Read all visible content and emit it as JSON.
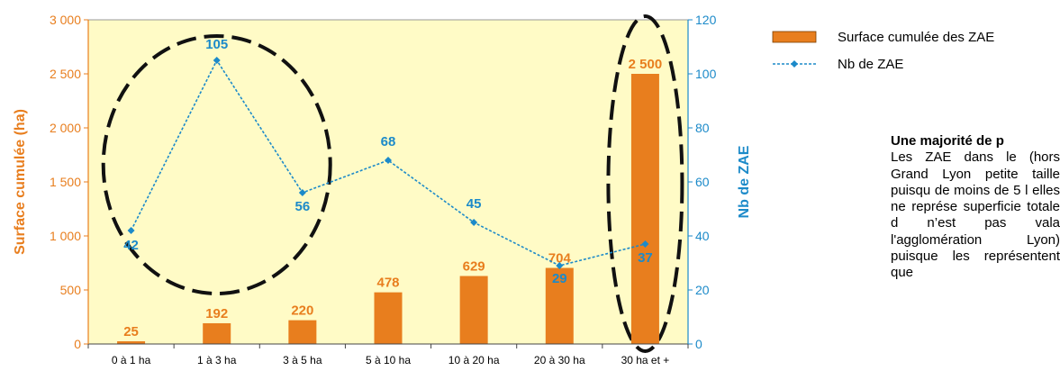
{
  "chart_data": {
    "type": "bar",
    "categories": [
      "0 à 1 ha",
      "1 à 3 ha",
      "3 à 5 ha",
      "5 à 10 ha",
      "10 à 20 ha",
      "20 à 30 ha",
      "30 ha et +"
    ],
    "series": [
      {
        "name": "Surface cumulée des ZAE",
        "type": "bar",
        "axis": "left",
        "color": "#E87E1E",
        "values": [
          25,
          192,
          220,
          478,
          629,
          704,
          2500
        ],
        "labels": [
          "25",
          "192",
          "220",
          "478",
          "629",
          "704",
          "2 500"
        ]
      },
      {
        "name": "Nb de ZAE",
        "type": "line",
        "axis": "right",
        "color": "#1C8AC9",
        "values": [
          42,
          105,
          56,
          68,
          45,
          29,
          37
        ],
        "labels": [
          "42",
          "105",
          "56",
          "68",
          "45",
          "29",
          "37"
        ]
      }
    ],
    "ylabel_left": "Surface cumulée (ha)",
    "ylabel_right": "Nb de ZAE",
    "xlabel": "",
    "ylim_left": [
      0,
      3000
    ],
    "ylim_right": [
      0,
      120
    ],
    "yticks_left": [
      "0",
      "500",
      "1 000",
      "1 500",
      "2 000",
      "2 500",
      "3 000"
    ],
    "yticks_right": [
      "0",
      "20",
      "40",
      "60",
      "80",
      "100",
      "120"
    ],
    "plot_background": "#FFFBC6",
    "grid": false,
    "legend_position": "top-right, outside plot",
    "annotations": [
      {
        "shape": "dashed ellipse",
        "encloses": [
          "0 à 1 ha",
          "1 à 3 ha",
          "3 à 5 ha"
        ]
      },
      {
        "shape": "dashed ellipse",
        "encloses": [
          "30 ha et +"
        ]
      }
    ]
  },
  "side_text": {
    "heading": "Une majorité de p",
    "body": "Les ZAE dans le (hors Grand Lyon petite taille puisqu de moins de 5 l elles ne représe superficie totale d n’est pas vala l'agglomération Lyon) puisque les représentent que"
  },
  "colors": {
    "left_axis_color": "#E87E1E",
    "right_axis_color": "#1C8AC9"
  }
}
